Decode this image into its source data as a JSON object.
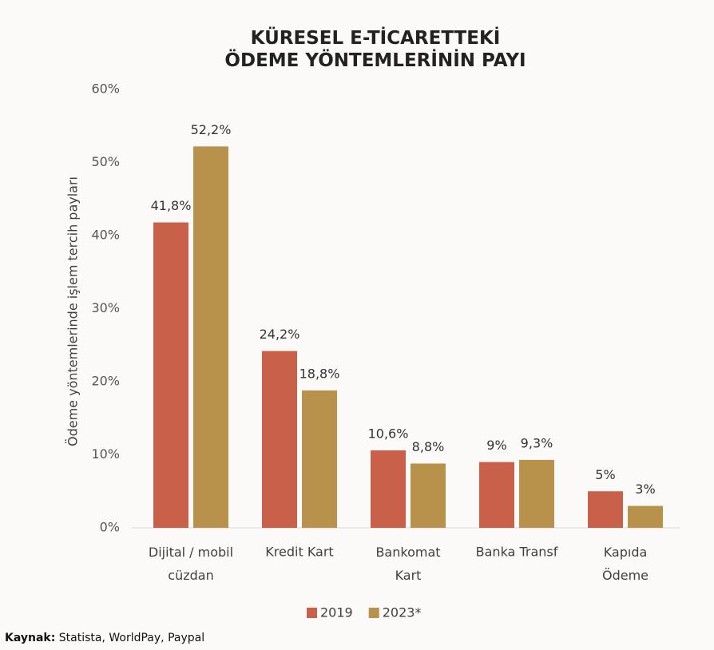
{
  "chart_data": {
    "type": "bar",
    "title": "KÜRESEL E-TİCARETTEKİ\nÖDEME YÖNTEMLERİNİN PAYI",
    "y_label": "Ödeme yöntemlerinde işlem tercih payları",
    "categories": [
      "Dijital / mobil\ncüzdan",
      "Kredit Kart",
      "Bankomat\nKart",
      "Banka Transf",
      "Kapıda\nÖdeme"
    ],
    "series": [
      {
        "name": "2019",
        "color": "#c8604a",
        "values": [
          41.8,
          24.2,
          10.6,
          9,
          5
        ],
        "value_labels": [
          "41,8%",
          "24,2%",
          "10,6%",
          "9%",
          "5%"
        ]
      },
      {
        "name": "2023*",
        "color": "#b8924a",
        "values": [
          52.2,
          18.8,
          8.8,
          9.3,
          3
        ],
        "value_labels": [
          "52,2%",
          "18,8%",
          "8,8%",
          "9,3%",
          "3%"
        ]
      }
    ],
    "ylim": [
      0,
      60
    ],
    "yticks": [
      {
        "value": 0,
        "label": "0%"
      },
      {
        "value": 10,
        "label": "10%"
      },
      {
        "value": 20,
        "label": "20%"
      },
      {
        "value": 30,
        "label": "30%"
      },
      {
        "value": 40,
        "label": "40%"
      },
      {
        "value": 50,
        "label": "50%"
      },
      {
        "value": 60,
        "label": "60%"
      }
    ],
    "legend": "bottom",
    "source_label": "Kaynak:",
    "source": "Statista, WorldPay, Paypal"
  }
}
